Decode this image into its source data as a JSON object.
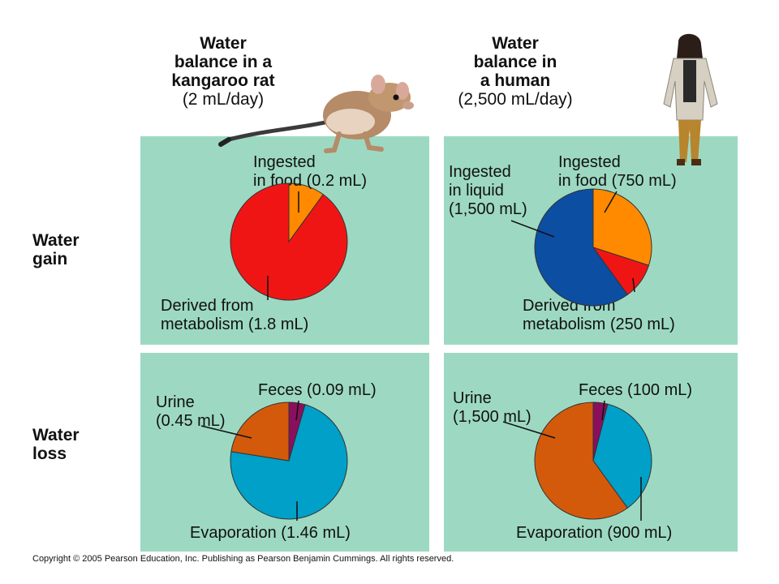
{
  "columns": {
    "rat": {
      "title_bold": [
        "Water",
        "balance in a",
        "kangaroo rat"
      ],
      "rate": "(2 mL/day)"
    },
    "human": {
      "title_bold": [
        "Water",
        "balance in",
        "a human"
      ],
      "rate": "(2,500 mL/day)"
    }
  },
  "rows": {
    "gain": [
      "Water",
      "gain"
    ],
    "loss": [
      "Water",
      "loss"
    ]
  },
  "colors": {
    "panel": "#9dd9c2",
    "food": "#ff8a00",
    "metabolism": "#f01515",
    "liquid": "#0b4ea2",
    "urine": "#d45a0b",
    "feces": "#8a0f5e",
    "evaporation": "#00a0c8"
  },
  "illustrations": [
    "kangaroo-rat",
    "human-figure"
  ],
  "copyright": "Copyright © 2005 Pearson Education, Inc. Publishing as Pearson Benjamin Cummings. All rights reserved.",
  "chart_data": [
    {
      "type": "pie",
      "title": "",
      "slices": [
        {
          "name": "Ingested in food",
          "value": 0.2,
          "label": [
            "Ingested",
            "in food (0.2 mL)"
          ],
          "color": "#ff8a00"
        },
        {
          "name": "Derived from metabolism",
          "value": 1.8,
          "label": [
            "Derived from",
            "metabolism (1.8 mL)"
          ],
          "color": "#f01515"
        }
      ]
    },
    {
      "type": "pie",
      "title": "",
      "slices": [
        {
          "name": "Ingested in food",
          "value": 750,
          "label": [
            "Ingested",
            "in food (750 mL)"
          ],
          "color": "#ff8a00"
        },
        {
          "name": "Derived from metabolism",
          "value": 250,
          "label": [
            "Derived from",
            "metabolism (250 mL)"
          ],
          "color": "#f01515"
        },
        {
          "name": "Ingested in liquid",
          "value": 1500,
          "label": [
            "Ingested",
            "in liquid",
            "(1,500 mL)"
          ],
          "color": "#0b4ea2"
        }
      ]
    },
    {
      "type": "pie",
      "title": "",
      "slices": [
        {
          "name": "Feces",
          "value": 0.09,
          "label": [
            "Feces (0.09 mL)"
          ],
          "color": "#8a0f5e"
        },
        {
          "name": "Evaporation",
          "value": 1.46,
          "label": [
            "Evaporation (1.46 mL)"
          ],
          "color": "#00a0c8"
        },
        {
          "name": "Urine",
          "value": 0.45,
          "label": [
            "Urine",
            "(0.45 mL)"
          ],
          "color": "#d45a0b"
        }
      ]
    },
    {
      "type": "pie",
      "title": "",
      "slices": [
        {
          "name": "Feces",
          "value": 100,
          "label": [
            "Feces (100 mL)"
          ],
          "color": "#8a0f5e"
        },
        {
          "name": "Evaporation",
          "value": 900,
          "label": [
            "Evaporation (900 mL)"
          ],
          "color": "#00a0c8"
        },
        {
          "name": "Urine",
          "value": 1500,
          "label": [
            "Urine",
            "(1,500 mL)"
          ],
          "color": "#d45a0b"
        }
      ]
    }
  ]
}
